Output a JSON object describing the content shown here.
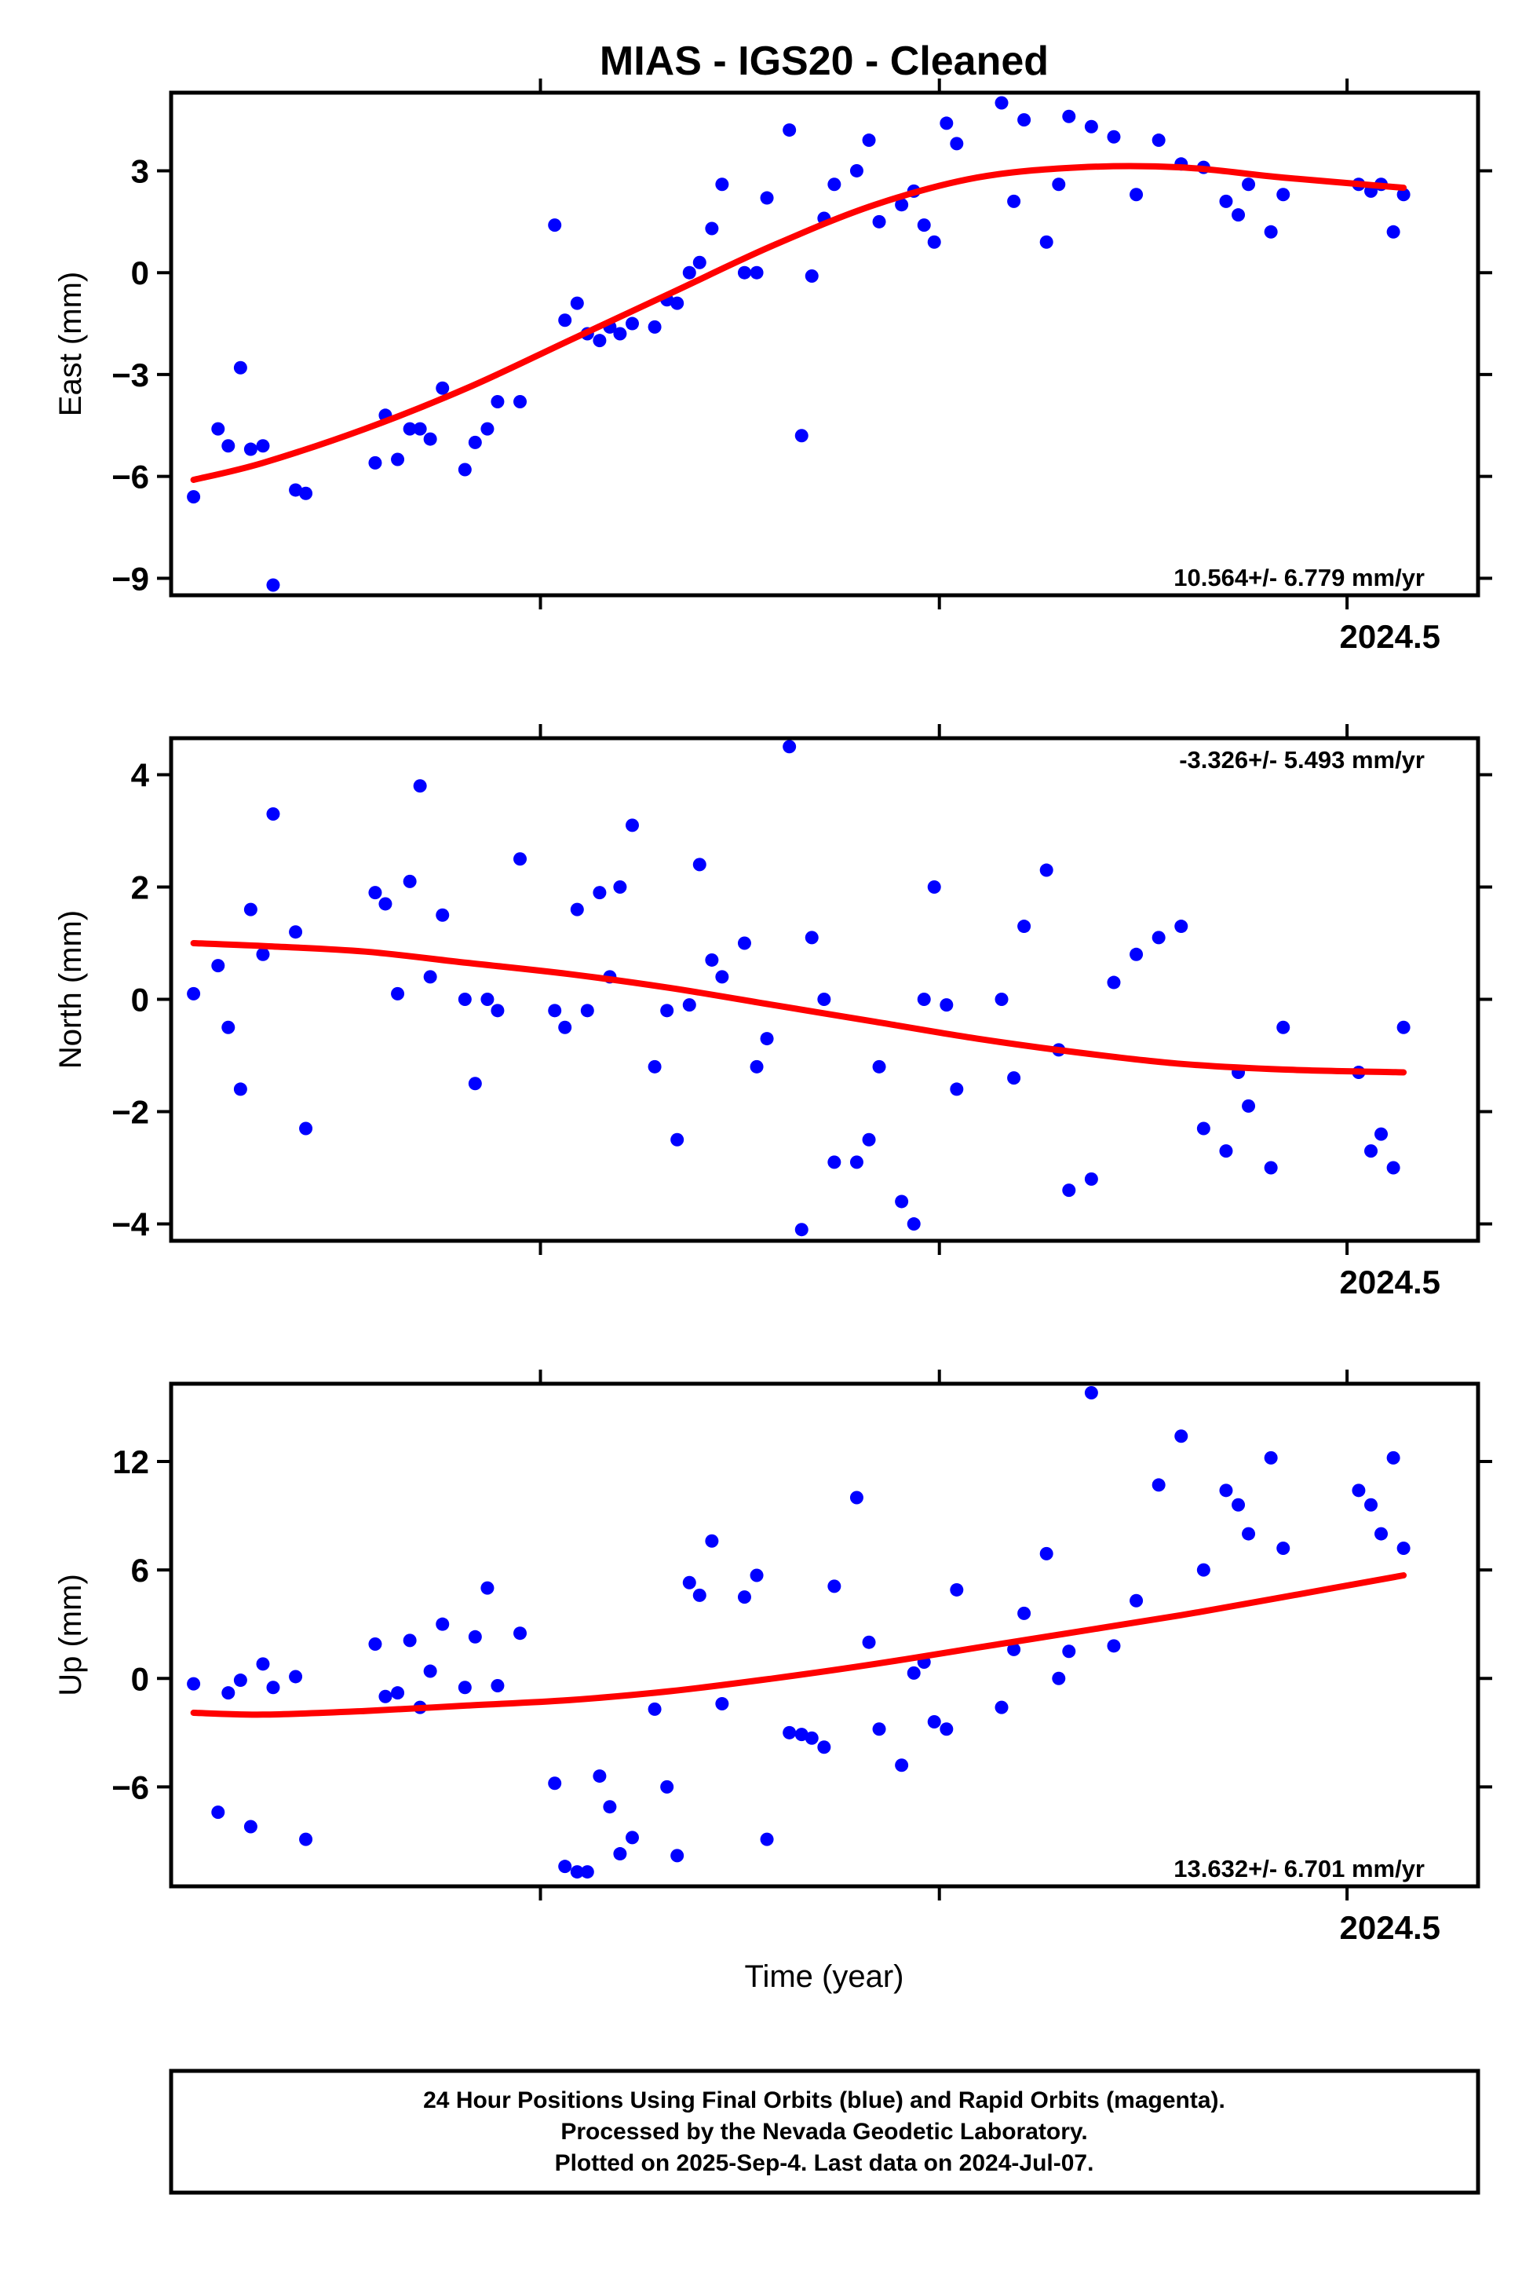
{
  "title": "MIAS  - IGS20 - Cleaned",
  "xlabel": "Time (year)",
  "colors": {
    "points": "#0000ff",
    "fit": "#ff0000",
    "frame": "#000000"
  },
  "footer": {
    "line1": "24 Hour Positions Using Final Orbits (blue) and Rapid Orbits (magenta).",
    "line2": "Processed by the Nevada Geodetic Laboratory.",
    "line3": "Plotted on 2025-Sep-4. Last data on 2024-Jul-07."
  },
  "chart_data": [
    {
      "type": "scatter",
      "id": "east",
      "ylabel": "East (mm)",
      "ylim": [
        -9.5,
        5.3
      ],
      "xlim": [
        2023.955,
        2024.5955
      ],
      "yticks": [
        3,
        0,
        -3,
        -6,
        -9
      ],
      "ytick_labels": [
        "3",
        "0",
        "−3",
        "−6",
        "−9"
      ],
      "xticks": [
        2024.136,
        2024.3315,
        2024.5313
      ],
      "xtick_label": "2024.5",
      "rate_label": "10.564+/- 6.779 mm/yr",
      "rate_position": "bottom-right",
      "series": [
        {
          "name": "daily positions (final orbits)",
          "x": [
            2023.966,
            2023.978,
            2023.983,
            2023.989,
            2023.994,
            2024.0,
            2024.005,
            2024.016,
            2024.021,
            2024.055,
            2024.06,
            2024.066,
            2024.072,
            2024.077,
            2024.082,
            2024.088,
            2024.099,
            2024.104,
            2024.11,
            2024.115,
            2024.126,
            2024.143,
            2024.148,
            2024.154,
            2024.159,
            2024.165,
            2024.17,
            2024.175,
            2024.181,
            2024.192,
            2024.198,
            2024.203,
            2024.209,
            2024.214,
            2024.22,
            2024.225,
            2024.236,
            2024.242,
            2024.247,
            2024.258,
            2024.264,
            2024.269,
            2024.275,
            2024.28,
            2024.291,
            2024.297,
            2024.302,
            2024.313,
            2024.319,
            2024.324,
            2024.329,
            2024.335,
            2024.34,
            2024.362,
            2024.368,
            2024.373,
            2024.384,
            2024.39,
            2024.395,
            2024.406,
            2024.417,
            2024.428,
            2024.439,
            2024.45,
            2024.461,
            2024.472,
            2024.478,
            2024.483,
            2024.494,
            2024.5,
            2024.537,
            2024.543,
            2024.548,
            2024.554,
            2024.559
          ],
          "values": [
            -6.6,
            -4.6,
            -5.1,
            -2.8,
            -5.2,
            -5.1,
            -9.2,
            -6.4,
            -6.5,
            -5.6,
            -4.2,
            -5.5,
            -4.6,
            -4.6,
            -4.9,
            -3.4,
            -5.8,
            -5.0,
            -4.6,
            -3.8,
            -3.8,
            1.4,
            -1.4,
            -0.9,
            -1.8,
            -2.0,
            -1.6,
            -1.8,
            -1.5,
            -1.6,
            -0.8,
            -0.9,
            0.0,
            0.3,
            1.3,
            2.6,
            0.0,
            0.0,
            2.2,
            4.2,
            -4.8,
            -0.1,
            1.6,
            2.6,
            3.0,
            3.9,
            1.5,
            2.0,
            2.4,
            1.4,
            0.9,
            4.4,
            3.8,
            5.0,
            2.1,
            4.5,
            0.9,
            2.6,
            4.6,
            4.3,
            4.0,
            2.3,
            3.9,
            3.2,
            3.1,
            2.1,
            1.7,
            2.6,
            1.2,
            2.3,
            2.6,
            2.4,
            2.6,
            1.2,
            2.3
          ]
        },
        {
          "name": "fit",
          "x": [
            2023.966,
            2024.0,
            2024.05,
            2024.1,
            2024.15,
            2024.2,
            2024.25,
            2024.3,
            2024.35,
            2024.4,
            2024.45,
            2024.5,
            2024.559
          ],
          "values": [
            -6.1,
            -5.6,
            -4.6,
            -3.4,
            -2.0,
            -0.6,
            0.8,
            2.0,
            2.8,
            3.1,
            3.1,
            2.8,
            2.5
          ]
        }
      ]
    },
    {
      "type": "scatter",
      "id": "north",
      "ylabel": "North (mm)",
      "ylim": [
        -4.3,
        4.65
      ],
      "xlim": [
        2023.955,
        2024.5955
      ],
      "yticks": [
        4,
        2,
        0,
        -2,
        -4
      ],
      "ytick_labels": [
        "4",
        "2",
        "0",
        "−2",
        "−4"
      ],
      "xticks": [
        2024.136,
        2024.3315,
        2024.5313
      ],
      "xtick_label": "2024.5",
      "rate_label": "-3.326+/- 5.493 mm/yr",
      "rate_position": "top-right",
      "series": [
        {
          "name": "daily positions (final orbits)",
          "x": [
            2023.966,
            2023.978,
            2023.983,
            2023.989,
            2023.994,
            2024.0,
            2024.005,
            2024.016,
            2024.021,
            2024.055,
            2024.06,
            2024.066,
            2024.072,
            2024.077,
            2024.082,
            2024.088,
            2024.099,
            2024.104,
            2024.11,
            2024.115,
            2024.126,
            2024.143,
            2024.148,
            2024.154,
            2024.159,
            2024.165,
            2024.17,
            2024.175,
            2024.181,
            2024.192,
            2024.198,
            2024.203,
            2024.209,
            2024.214,
            2024.22,
            2024.225,
            2024.236,
            2024.242,
            2024.247,
            2024.258,
            2024.264,
            2024.269,
            2024.275,
            2024.28,
            2024.291,
            2024.297,
            2024.302,
            2024.313,
            2024.319,
            2024.324,
            2024.329,
            2024.335,
            2024.34,
            2024.362,
            2024.368,
            2024.373,
            2024.384,
            2024.39,
            2024.395,
            2024.406,
            2024.417,
            2024.428,
            2024.439,
            2024.45,
            2024.461,
            2024.472,
            2024.478,
            2024.483,
            2024.494,
            2024.5,
            2024.537,
            2024.543,
            2024.548,
            2024.554,
            2024.559
          ],
          "values": [
            0.1,
            0.6,
            -0.5,
            -1.6,
            1.6,
            0.8,
            3.3,
            1.2,
            -2.3,
            1.9,
            1.7,
            0.1,
            2.1,
            3.8,
            0.4,
            1.5,
            0.0,
            -1.5,
            0.0,
            -0.2,
            2.5,
            -0.2,
            -0.5,
            1.6,
            -0.2,
            1.9,
            0.4,
            2.0,
            3.1,
            -1.2,
            -0.2,
            -2.5,
            -0.1,
            2.4,
            0.7,
            0.4,
            1.0,
            -1.2,
            -0.7,
            4.5,
            -4.1,
            1.1,
            0.0,
            -2.9,
            -2.9,
            -2.5,
            -1.2,
            -3.6,
            -4.0,
            0.0,
            2.0,
            -0.1,
            -1.6,
            0.0,
            -1.4,
            1.3,
            2.3,
            -0.9,
            -3.4,
            -3.2,
            0.3,
            0.8,
            1.1,
            1.3,
            -2.3,
            -2.7,
            -1.3,
            -1.9,
            -3.0,
            -0.5,
            -1.3,
            -2.7,
            -2.4,
            -3.0,
            -0.5
          ]
        },
        {
          "name": "fit",
          "x": [
            2023.966,
            2024.0,
            2024.05,
            2024.1,
            2024.15,
            2024.2,
            2024.25,
            2024.3,
            2024.35,
            2024.4,
            2024.45,
            2024.5,
            2024.559
          ],
          "values": [
            1.0,
            0.95,
            0.85,
            0.65,
            0.45,
            0.2,
            -0.1,
            -0.4,
            -0.7,
            -0.95,
            -1.15,
            -1.25,
            -1.3
          ]
        }
      ]
    },
    {
      "type": "scatter",
      "id": "up",
      "ylabel": "Up (mm)",
      "ylim": [
        -11.5,
        16.3
      ],
      "xlim": [
        2023.955,
        2024.5955
      ],
      "yticks": [
        12,
        6,
        0,
        -6
      ],
      "ytick_labels": [
        "12",
        "6",
        "0",
        "−6"
      ],
      "xticks": [
        2024.136,
        2024.3315,
        2024.5313
      ],
      "xtick_label": "2024.5",
      "rate_label": "13.632+/- 6.701 mm/yr",
      "rate_position": "bottom-right",
      "series": [
        {
          "name": "daily positions (final orbits)",
          "x": [
            2023.966,
            2023.978,
            2023.983,
            2023.989,
            2023.994,
            2024.0,
            2024.005,
            2024.016,
            2024.021,
            2024.055,
            2024.06,
            2024.066,
            2024.072,
            2024.077,
            2024.082,
            2024.088,
            2024.099,
            2024.104,
            2024.11,
            2024.115,
            2024.126,
            2024.143,
            2024.148,
            2024.154,
            2024.159,
            2024.165,
            2024.17,
            2024.175,
            2024.181,
            2024.192,
            2024.198,
            2024.203,
            2024.209,
            2024.214,
            2024.22,
            2024.225,
            2024.236,
            2024.242,
            2024.247,
            2024.258,
            2024.264,
            2024.269,
            2024.275,
            2024.28,
            2024.291,
            2024.297,
            2024.302,
            2024.313,
            2024.319,
            2024.324,
            2024.329,
            2024.335,
            2024.34,
            2024.362,
            2024.368,
            2024.373,
            2024.384,
            2024.39,
            2024.395,
            2024.406,
            2024.417,
            2024.428,
            2024.439,
            2024.45,
            2024.461,
            2024.472,
            2024.478,
            2024.483,
            2024.494,
            2024.5,
            2024.537,
            2024.543,
            2024.548,
            2024.554,
            2024.559
          ],
          "values": [
            -0.3,
            -7.4,
            -0.8,
            -0.1,
            -8.2,
            0.8,
            -0.5,
            0.1,
            -8.9,
            1.9,
            -1.0,
            -0.8,
            2.1,
            -1.6,
            0.4,
            3.0,
            -0.5,
            2.3,
            5.0,
            -0.4,
            2.5,
            -5.8,
            -10.4,
            -10.7,
            -10.7,
            -5.4,
            -7.1,
            -9.7,
            -8.8,
            -1.7,
            -6.0,
            -9.8,
            5.3,
            4.6,
            7.6,
            -1.4,
            4.5,
            5.7,
            -8.9,
            -3.0,
            -3.1,
            -3.3,
            -3.8,
            5.1,
            10.0,
            2.0,
            -2.8,
            -4.8,
            0.3,
            0.9,
            -2.4,
            -2.8,
            4.9,
            -1.6,
            1.6,
            3.6,
            6.9,
            0.0,
            1.5,
            15.8,
            1.8,
            4.3,
            10.7,
            13.4,
            6.0,
            10.4,
            9.6,
            8.0,
            12.2,
            7.2,
            10.4,
            9.6,
            8.0,
            12.2,
            7.2
          ]
        },
        {
          "name": "fit",
          "x": [
            2023.966,
            2024.0,
            2024.05,
            2024.1,
            2024.15,
            2024.2,
            2024.25,
            2024.3,
            2024.35,
            2024.4,
            2024.45,
            2024.5,
            2024.559
          ],
          "values": [
            -1.9,
            -2.0,
            -1.8,
            -1.5,
            -1.2,
            -0.7,
            0.0,
            0.8,
            1.7,
            2.6,
            3.5,
            4.5,
            5.7
          ]
        }
      ]
    }
  ]
}
